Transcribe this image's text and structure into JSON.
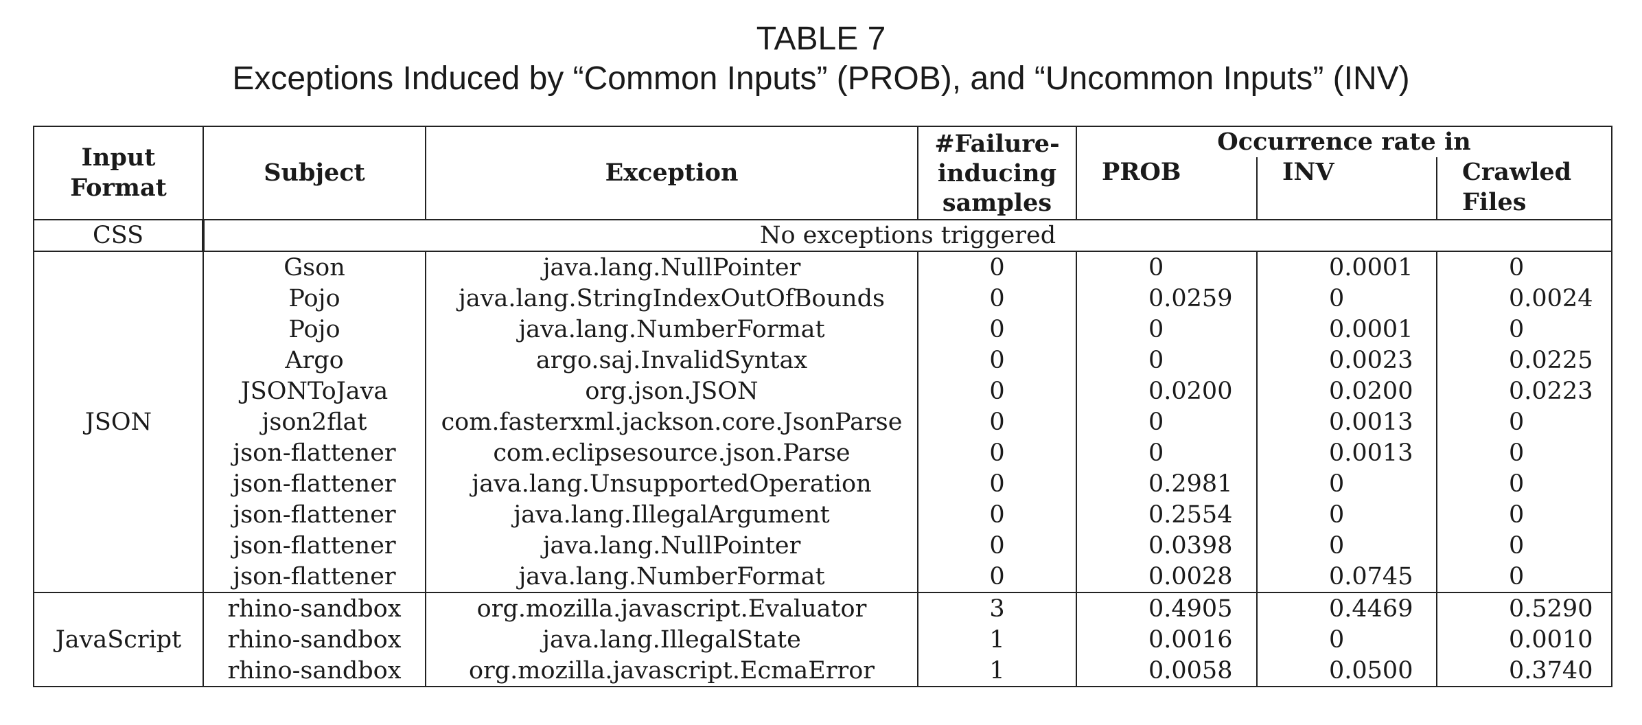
{
  "caption": {
    "label": "TABLE 7",
    "title": "Exceptions Induced by “Common Inputs” (PROB), and “Uncommon Inputs” (INV)"
  },
  "headers": {
    "input_format": [
      "Input",
      "Format"
    ],
    "subject": "Subject",
    "exception": "Exception",
    "samples": [
      "#Failure-",
      "inducing",
      "samples"
    ],
    "occurrence_group": "Occurrence rate in",
    "prob": "PROB",
    "inv": "INV",
    "crawled": [
      "Crawled",
      "Files"
    ]
  },
  "css_row": {
    "format": "CSS",
    "message": "No exceptions triggered"
  },
  "groups": [
    {
      "format": "JSON",
      "rows": [
        {
          "subject": "Gson",
          "exception": "java.lang.NullPointer",
          "samples": "0",
          "prob": "0",
          "inv": "0.0001",
          "crawled": "0"
        },
        {
          "subject": "Pojo",
          "exception": "java.lang.StringIndexOutOfBounds",
          "samples": "0",
          "prob": "0.0259",
          "inv": "0",
          "crawled": "0.0024"
        },
        {
          "subject": "Pojo",
          "exception": "java.lang.NumberFormat",
          "samples": "0",
          "prob": "0",
          "inv": "0.0001",
          "crawled": "0"
        },
        {
          "subject": "Argo",
          "exception": "argo.saj.InvalidSyntax",
          "samples": "0",
          "prob": "0",
          "inv": "0.0023",
          "crawled": "0.0225"
        },
        {
          "subject": "JSONToJava",
          "exception": "org.json.JSON",
          "samples": "0",
          "prob": "0.0200",
          "inv": "0.0200",
          "crawled": "0.0223"
        },
        {
          "subject": "json2flat",
          "exception": "com.fasterxml.jackson.core.JsonParse",
          "samples": "0",
          "prob": "0",
          "inv": "0.0013",
          "crawled": "0"
        },
        {
          "subject": "json-flattener",
          "exception": "com.eclipsesource.json.Parse",
          "samples": "0",
          "prob": "0",
          "inv": "0.0013",
          "crawled": "0"
        },
        {
          "subject": "json-flattener",
          "exception": "java.lang.UnsupportedOperation",
          "samples": "0",
          "prob": "0.2981",
          "inv": "0",
          "crawled": "0"
        },
        {
          "subject": "json-flattener",
          "exception": "java.lang.IllegalArgument",
          "samples": "0",
          "prob": "0.2554",
          "inv": "0",
          "crawled": "0"
        },
        {
          "subject": "json-flattener",
          "exception": "java.lang.NullPointer",
          "samples": "0",
          "prob": "0.0398",
          "inv": "0",
          "crawled": "0"
        },
        {
          "subject": "json-flattener",
          "exception": "java.lang.NumberFormat",
          "samples": "0",
          "prob": "0.0028",
          "inv": "0.0745",
          "crawled": "0"
        }
      ]
    },
    {
      "format": "JavaScript",
      "rows": [
        {
          "subject": "rhino-sandbox",
          "exception": "org.mozilla.javascript.Evaluator",
          "samples": "3",
          "prob": "0.4905",
          "inv": "0.4469",
          "crawled": "0.5290"
        },
        {
          "subject": "rhino-sandbox",
          "exception": "java.lang.IllegalState",
          "samples": "1",
          "prob": "0.0016",
          "inv": "0",
          "crawled": "0.0010"
        },
        {
          "subject": "rhino-sandbox",
          "exception": "org.mozilla.javascript.EcmaError",
          "samples": "1",
          "prob": "0.0058",
          "inv": "0.0500",
          "crawled": "0.3740"
        }
      ]
    }
  ]
}
